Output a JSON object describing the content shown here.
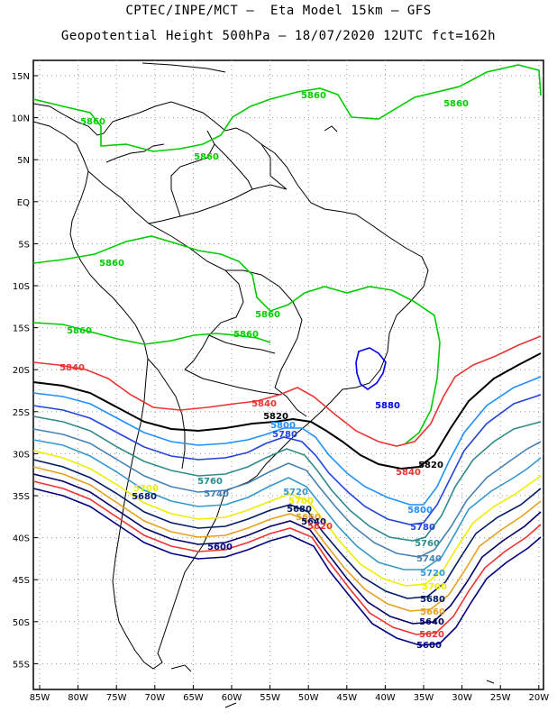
{
  "header": {
    "title_line1": "CPTEC/INPE/MCT –  Eta Model 15km – GFS",
    "title_line2": "Geopotential Height 500hPa – 18/07/2020 12UTC fct=162h"
  },
  "map": {
    "lon_labels": [
      "85W",
      "80W",
      "75W",
      "70W",
      "65W",
      "60W",
      "55W",
      "50W",
      "45W",
      "40W",
      "35W",
      "30W",
      "25W",
      "20W"
    ],
    "lat_labels": [
      "15N",
      "10N",
      "5N",
      "EQ",
      "5S",
      "10S",
      "15S",
      "20S",
      "25S",
      "30S",
      "35S",
      "40S",
      "45S",
      "50S",
      "55S"
    ],
    "grid": true
  },
  "contour_colors": {
    "5880": "#0000ee",
    "5860": "#00cc00",
    "5840": "#ee3333",
    "5820": "#000000",
    "5800": "#1e90ff",
    "5780": "#2244dd",
    "5760": "#2e8b8b",
    "5740": "#4682b4",
    "5720": "#3399cc",
    "5700": "#eeee00",
    "5680": "#001a66",
    "5660": "#e8a020",
    "5640": "#000066",
    "5620": "#ee3333",
    "5600": "#000080"
  },
  "contour_labels": [
    {
      "text": "5860",
      "key": "5860"
    },
    {
      "text": "5860",
      "key": "5860"
    },
    {
      "text": "5860",
      "key": "5860"
    },
    {
      "text": "5860",
      "key": "5860"
    },
    {
      "text": "5860",
      "key": "5860"
    },
    {
      "text": "5860",
      "key": "5860"
    },
    {
      "text": "5860",
      "key": "5860"
    },
    {
      "text": "5860",
      "key": "5860"
    },
    {
      "text": "5880",
      "key": "5880"
    },
    {
      "text": "5840",
      "key": "5840"
    },
    {
      "text": "5840",
      "key": "5840"
    },
    {
      "text": "5840",
      "key": "5840"
    },
    {
      "text": "5820",
      "key": "5820"
    },
    {
      "text": "5820",
      "key": "5820"
    },
    {
      "text": "5800",
      "key": "5800"
    },
    {
      "text": "5800",
      "key": "5800"
    },
    {
      "text": "5780",
      "key": "5780"
    },
    {
      "text": "5780",
      "key": "5780"
    },
    {
      "text": "5760",
      "key": "5760"
    },
    {
      "text": "5760",
      "key": "5760"
    },
    {
      "text": "5740",
      "key": "5740"
    },
    {
      "text": "5740",
      "key": "5740"
    },
    {
      "text": "5720",
      "key": "5720"
    },
    {
      "text": "5720",
      "key": "5720"
    },
    {
      "text": "5700",
      "key": "5700"
    },
    {
      "text": "5700",
      "key": "5700"
    },
    {
      "text": "5700",
      "key": "5700"
    },
    {
      "text": "5680",
      "key": "5680"
    },
    {
      "text": "5680",
      "key": "5680"
    },
    {
      "text": "5680",
      "key": "5680"
    },
    {
      "text": "5660",
      "key": "5660"
    },
    {
      "text": "5660",
      "key": "5660"
    },
    {
      "text": "5640",
      "key": "5640"
    },
    {
      "text": "5640",
      "key": "5640"
    },
    {
      "text": "5620",
      "key": "5620"
    },
    {
      "text": "5620",
      "key": "5620"
    },
    {
      "text": "5600",
      "key": "5600"
    },
    {
      "text": "5600",
      "key": "5600"
    }
  ]
}
